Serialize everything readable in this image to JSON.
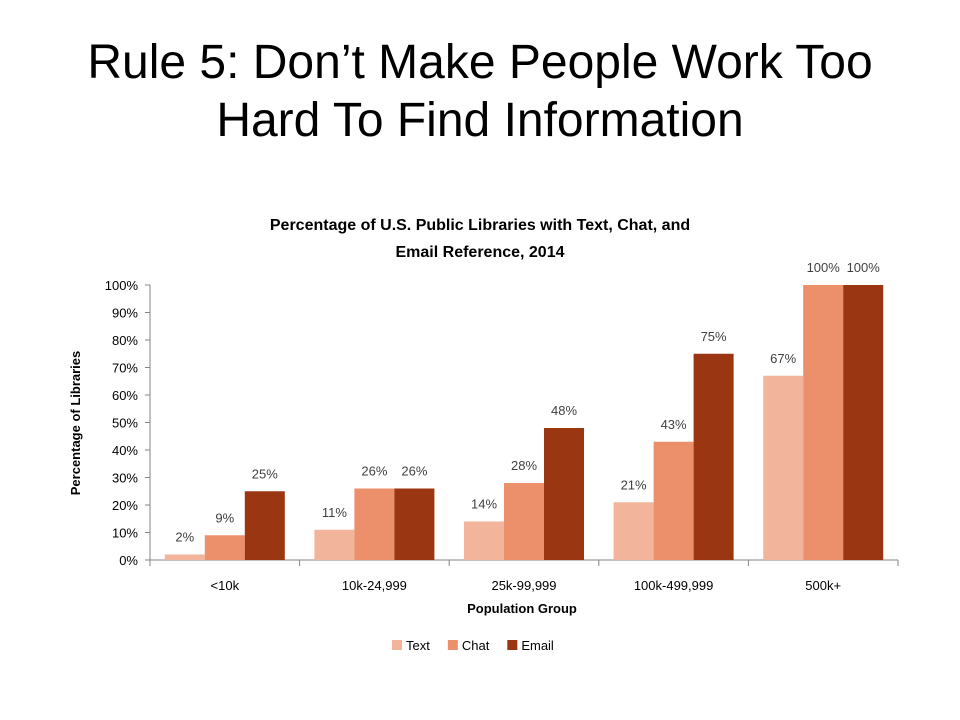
{
  "slide": {
    "title_line1": "Rule 5: Don’t Make People Work Too",
    "title_line2": "Hard To Find Information"
  },
  "chart_data": {
    "type": "bar",
    "title_line1": "Percentage of U.S. Public Libraries with Text, Chat, and",
    "title_line2": "Email Reference, 2014",
    "xlabel": "Population Group",
    "ylabel": "Percentage of Libraries",
    "categories": [
      "<10k",
      "10k-24,999",
      "25k-99,999",
      "100k-499,999",
      "500k+"
    ],
    "series": [
      {
        "name": "Text",
        "color": "#f2b49a",
        "values": [
          2,
          11,
          14,
          21,
          67
        ]
      },
      {
        "name": "Chat",
        "color": "#ec8f6b",
        "values": [
          9,
          26,
          28,
          43,
          100
        ]
      },
      {
        "name": "Email",
        "color": "#9b3613",
        "values": [
          25,
          26,
          48,
          75,
          100
        ]
      }
    ],
    "ylim": [
      0,
      100
    ],
    "yticks": [
      "0%",
      "10%",
      "20%",
      "30%",
      "40%",
      "50%",
      "60%",
      "70%",
      "80%",
      "90%",
      "100%"
    ],
    "value_suffix": "%",
    "grid": false,
    "legend_position": "bottom"
  }
}
